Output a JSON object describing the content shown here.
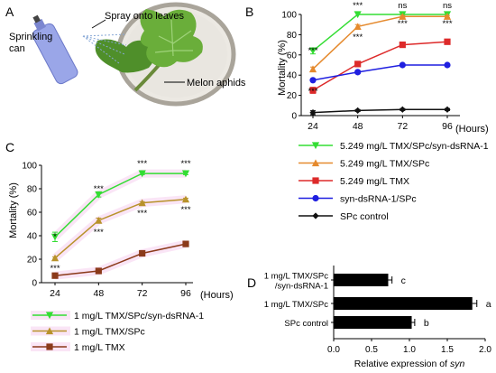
{
  "panels": {
    "A": {
      "letter": "A",
      "labels": {
        "spray": "Spray onto leaves",
        "can_line1": "Sprinkling",
        "can_line2": "can",
        "aphids": "Melon aphids"
      }
    },
    "B": {
      "letter": "B",
      "sig": [
        {
          "t": "***",
          "x": 24,
          "row": "upper"
        },
        {
          "t": "***",
          "x": 24,
          "row": "lower"
        },
        {
          "t": "***",
          "x": 48,
          "row": "upper"
        },
        {
          "t": "***",
          "x": 48,
          "row": "lower"
        },
        {
          "t": "ns",
          "x": 72,
          "row": "upper"
        },
        {
          "t": "***",
          "x": 72,
          "row": "lower"
        },
        {
          "t": "ns",
          "x": 96,
          "row": "upper"
        },
        {
          "t": "***",
          "x": 96,
          "row": "lower"
        }
      ]
    },
    "C": {
      "letter": "C",
      "sig": [
        {
          "t": "*",
          "x": 24,
          "row": "upper"
        },
        {
          "t": "***",
          "x": 24,
          "row": "lower"
        },
        {
          "t": "***",
          "x": 48,
          "row": "upper"
        },
        {
          "t": "***",
          "x": 48,
          "row": "lower"
        },
        {
          "t": "***",
          "x": 72,
          "row": "upper"
        },
        {
          "t": "***",
          "x": 72,
          "row": "lower"
        },
        {
          "t": "***",
          "x": 96,
          "row": "upper"
        },
        {
          "t": "***",
          "x": 96,
          "row": "lower"
        }
      ]
    },
    "D": {
      "letter": "D",
      "letters": [
        "c",
        "a",
        "b"
      ]
    }
  },
  "colors": {
    "green": "#33dd33",
    "orange": "#e58a2e",
    "red": "#dd2a2a",
    "blue": "#1f1fe0",
    "black": "#111111",
    "olive": "#b8922a",
    "brown": "#8b3a1a",
    "highlight": "#f5d0ee"
  },
  "chart_data": [
    {
      "panel": "B",
      "type": "line",
      "x": [
        24,
        48,
        72,
        96
      ],
      "xticks": [
        "24",
        "48",
        "72",
        "96"
      ],
      "xunit": "(Hours)",
      "ylabel": "Mortality (%)",
      "ylim": [
        0,
        100
      ],
      "yticks": [
        0,
        20,
        40,
        60,
        80,
        100
      ],
      "legend_position": "below",
      "series": [
        {
          "name": "5.249 mg/L TMX/SPc/syn-dsRNA-1",
          "color": "#33dd33",
          "marker": "triangle-down",
          "values": [
            64,
            100,
            100,
            100
          ],
          "err": [
            3,
            0,
            0,
            0
          ]
        },
        {
          "name": "5.249 mg/L TMX/SPc",
          "color": "#e58a2e",
          "marker": "triangle-up",
          "values": [
            46,
            88,
            98,
            98
          ],
          "err": [
            2,
            2,
            1,
            1
          ]
        },
        {
          "name": "5.249 mg/L TMX",
          "color": "#dd2a2a",
          "marker": "square",
          "values": [
            25,
            51,
            70,
            73
          ],
          "err": [
            3,
            1,
            2,
            1
          ]
        },
        {
          "name": "syn-dsRNA-1/SPc",
          "color": "#1f1fe0",
          "marker": "circle",
          "values": [
            35,
            43,
            50,
            50
          ],
          "err": [
            1,
            1,
            1,
            1
          ]
        },
        {
          "name": "SPc control",
          "color": "#111111",
          "marker": "diamond",
          "values": [
            3,
            5,
            6,
            6
          ],
          "err": [
            2,
            1,
            1,
            1
          ]
        }
      ]
    },
    {
      "panel": "C",
      "type": "line",
      "x": [
        24,
        48,
        72,
        96
      ],
      "xticks": [
        "24",
        "48",
        "72",
        "96"
      ],
      "xunit": "(Hours)",
      "ylabel": "Mortality (%)",
      "ylim": [
        0,
        100
      ],
      "yticks": [
        0,
        20,
        40,
        60,
        80,
        100
      ],
      "legend_position": "below",
      "series": [
        {
          "name": "1 mg/L TMX/SPc/syn-dsRNA-1",
          "color": "#33dd33",
          "marker": "triangle-down",
          "values": [
            39,
            75,
            93,
            93
          ],
          "err": [
            4,
            2,
            1,
            1
          ]
        },
        {
          "name": "1 mg/L TMX/SPc",
          "color": "#b8922a",
          "marker": "triangle-up",
          "values": [
            21,
            53,
            68,
            71
          ],
          "err": [
            1,
            2,
            1,
            1
          ]
        },
        {
          "name": "1 mg/L TMX",
          "color": "#8b3a1a",
          "marker": "square",
          "values": [
            6,
            10,
            25,
            33
          ],
          "err": [
            1,
            1,
            2,
            1
          ]
        }
      ]
    },
    {
      "panel": "D",
      "type": "bar",
      "orientation": "horizontal",
      "categories": [
        "1 mg/L TMX/SPc /syn-dsRNA-1",
        "1 mg/L TMX/SPc",
        "SPc control"
      ],
      "category_lines": [
        [
          "1 mg/L TMX/SPc",
          "/syn-dsRNA-1"
        ],
        [
          "1 mg/L TMX/SPc"
        ],
        [
          "SPc control"
        ]
      ],
      "values": [
        0.72,
        1.83,
        1.03
      ],
      "err": [
        0.05,
        0.06,
        0.04
      ],
      "xlabel_main": "Relative expression of ",
      "xlabel_gene": "syn",
      "xlim": [
        0,
        2.0
      ],
      "xticks": [
        "0.0",
        "0.5",
        "1.0",
        "1.5",
        "2.0"
      ]
    }
  ]
}
